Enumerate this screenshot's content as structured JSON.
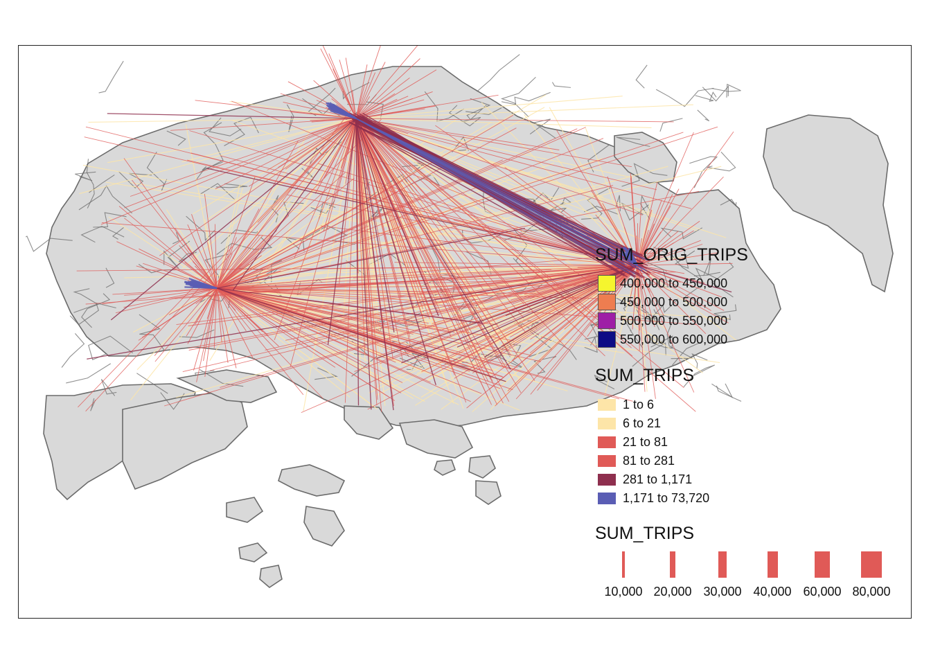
{
  "map": {
    "orig_legend": {
      "title": "SUM_ORIG_TRIPS",
      "items": [
        {
          "label": "400,000 to 450,000",
          "color": "#f5f52e"
        },
        {
          "label": "450,000 to 500,000",
          "color": "#ee7d50"
        },
        {
          "label": "500,000 to 550,000",
          "color": "#9e1ea6"
        },
        {
          "label": "550,000 to 600,000",
          "color": "#0d0c85"
        }
      ]
    },
    "trips_legend": {
      "title": "SUM_TRIPS",
      "items": [
        {
          "label": "1 to 6",
          "color": "#fde5a8"
        },
        {
          "label": "6 to 21",
          "color": "#fde5a8"
        },
        {
          "label": "21 to 81",
          "color": "#e05a57"
        },
        {
          "label": "81 to 281",
          "color": "#e05a57"
        },
        {
          "label": "281 to 1,171",
          "color": "#8e2f4e"
        },
        {
          "label": "1,171 to 73,720",
          "color": "#5a5db4"
        }
      ]
    },
    "width_legend": {
      "title": "SUM_TRIPS",
      "items": [
        {
          "label": "10,000",
          "value": 10000
        },
        {
          "label": "20,000",
          "value": 20000
        },
        {
          "label": "30,000",
          "value": 30000
        },
        {
          "label": "40,000",
          "value": 40000
        },
        {
          "label": "60,000",
          "value": 60000
        },
        {
          "label": "80,000",
          "value": 80000
        }
      ]
    },
    "colors": {
      "land": "#d9d9d9",
      "boundary": "#6b6b6b",
      "frame": "#222222"
    }
  }
}
